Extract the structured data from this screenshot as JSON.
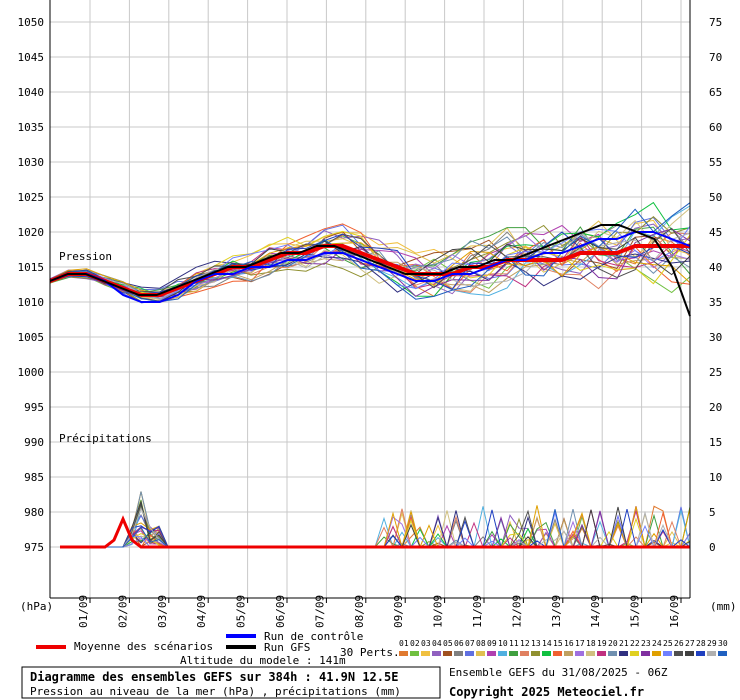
{
  "chart_data": {
    "type": "line",
    "left_axis": {
      "unit": "(hPa)",
      "ticks": [
        1050,
        1045,
        1040,
        1035,
        1030,
        1025,
        1020,
        1015,
        1010,
        1005,
        1000,
        995,
        990,
        985,
        980,
        975
      ],
      "range": [
        975,
        1050
      ]
    },
    "right_axis": {
      "unit": "(mm)",
      "ticks": [
        75,
        70,
        65,
        60,
        55,
        50,
        45,
        40,
        35,
        30,
        25,
        20,
        15,
        10,
        5,
        0
      ],
      "range": [
        0,
        75
      ]
    },
    "x_axis": {
      "ticks": [
        "01/09",
        "02/09",
        "03/09",
        "04/09",
        "05/09",
        "06/09",
        "07/09",
        "08/09",
        "09/09",
        "10/09",
        "11/09",
        "12/09",
        "13/09",
        "14/09",
        "15/09",
        "16/09"
      ]
    },
    "annotations": {
      "pression": "Pression",
      "precipitations": "Précipitations"
    },
    "series": [
      {
        "name": "Moyenne des scénarios",
        "color": "#ee0000",
        "values": [
          1013,
          1014,
          1014,
          1013,
          1012,
          1011,
          1011,
          1012,
          1013,
          1014,
          1015,
          1015,
          1016,
          1017,
          1017,
          1018,
          1018,
          1017,
          1016,
          1015,
          1014,
          1014,
          1014,
          1015,
          1015,
          1016,
          1016,
          1016,
          1016,
          1017,
          1017,
          1017,
          1018,
          1018,
          1018,
          1018
        ]
      },
      {
        "name": "Run de contrôle",
        "color": "#0000ff",
        "values": [
          1013,
          1014,
          1014,
          1013,
          1011,
          1010,
          1010,
          1011,
          1013,
          1014,
          1014,
          1015,
          1015,
          1016,
          1016,
          1017,
          1017,
          1016,
          1015,
          1014,
          1013,
          1013,
          1014,
          1014,
          1015,
          1016,
          1016,
          1017,
          1017,
          1018,
          1019,
          1019,
          1020,
          1020,
          1019,
          1018
        ]
      },
      {
        "name": "Run GFS",
        "color": "#000000",
        "values": [
          1013,
          1014,
          1014,
          1013,
          1012,
          1011,
          1011,
          1012,
          1013,
          1014,
          1015,
          1015,
          1016,
          1017,
          1017,
          1018,
          1018,
          1017,
          1016,
          1015,
          1014,
          1014,
          1014,
          1015,
          1015,
          1016,
          1016,
          1017,
          1018,
          1019,
          1020,
          1021,
          1021,
          1020,
          1019,
          1015,
          1008
        ]
      }
    ],
    "mean_precip_mm": [
      0,
      0,
      0,
      0,
      0,
      0,
      1,
      4,
      1,
      0,
      0,
      0,
      0,
      0,
      0,
      0,
      0,
      0,
      0,
      0,
      0,
      0,
      0,
      0,
      0,
      0,
      0,
      0,
      0,
      0,
      0,
      0,
      0,
      0,
      0,
      0,
      0,
      0,
      0,
      0,
      0,
      0,
      0,
      0,
      0,
      0,
      0,
      0,
      0,
      0,
      0,
      0,
      0,
      0,
      0,
      0,
      0,
      0,
      0,
      0,
      0,
      0,
      0,
      0,
      0,
      0,
      0,
      0,
      0,
      0,
      0
    ],
    "grid": true
  },
  "legend": {
    "mean": "Moyenne des scénarios",
    "control": "Run de contrôle",
    "gfs": "Run GFS",
    "perts_label": "30 Perts.",
    "pert_numbers": [
      "01",
      "02",
      "03",
      "04",
      "05",
      "06",
      "07",
      "08",
      "09",
      "10",
      "11",
      "12",
      "13",
      "14",
      "15",
      "16",
      "17",
      "18",
      "19",
      "20",
      "21",
      "22",
      "23",
      "24",
      "25",
      "26",
      "27",
      "28",
      "29",
      "30"
    ],
    "pert_colors": [
      "#e07a30",
      "#70c040",
      "#f0c040",
      "#9060c0",
      "#a05020",
      "#808080",
      "#6070e0",
      "#e0c050",
      "#b040b0",
      "#50b0e0",
      "#40a040",
      "#e08060",
      "#909030",
      "#10c040",
      "#f06030",
      "#c0a060",
      "#a070e0",
      "#d0c080",
      "#c03080",
      "#7090b0",
      "#303080",
      "#e0d020",
      "#8030a0",
      "#e0a000",
      "#7080ff",
      "#505050",
      "#404040",
      "#2040c0",
      "#b0b0b0",
      "#2060c0"
    ]
  },
  "info": {
    "altitude": "Altitude du modele : 141m",
    "title": "Diagramme des ensembles GEFS sur 384h : 41.9N 12.5E",
    "subtitle": "Pression au niveau de la mer (hPa) , précipitations (mm)",
    "run": "Ensemble GEFS du 31/08/2025 - 06Z",
    "copyright": "Copyright 2025 Meteociel.fr"
  }
}
